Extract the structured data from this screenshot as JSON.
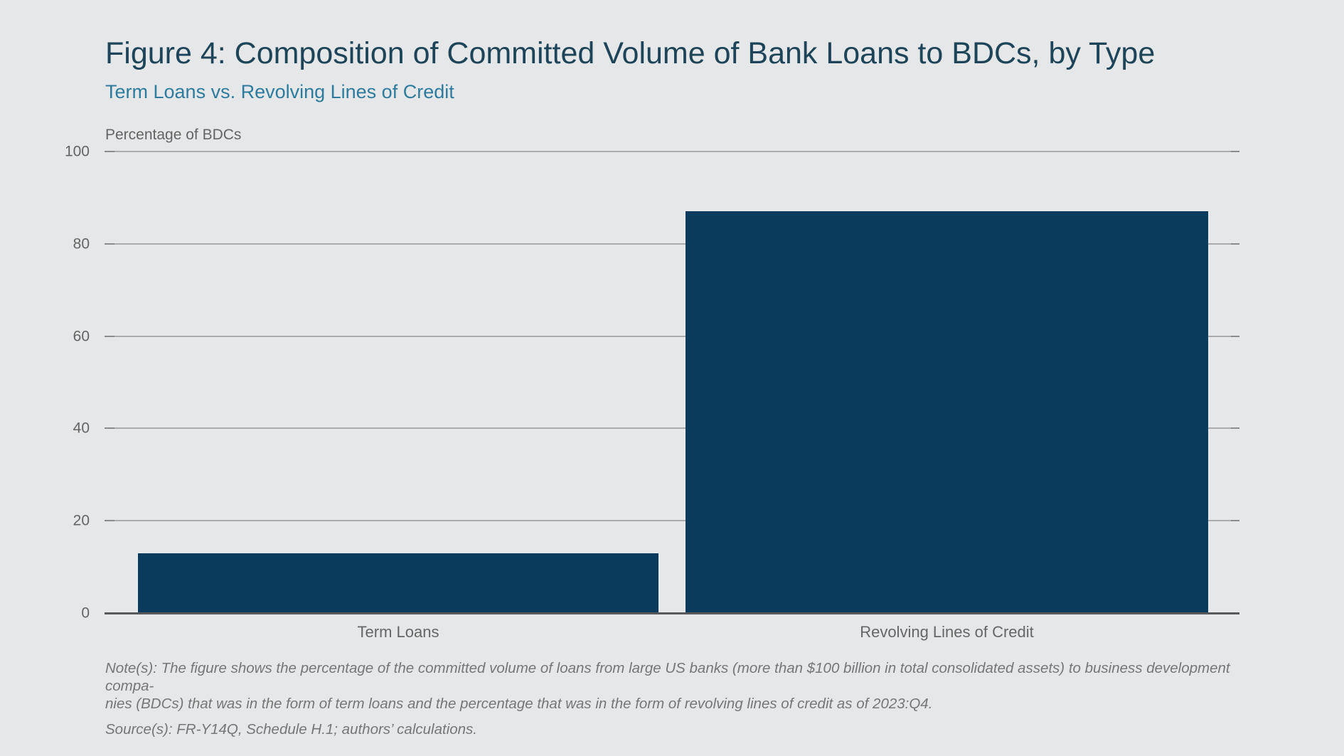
{
  "figure": {
    "title": "Figure 4: Composition of Committed Volume of Bank Loans to BDCs, by Type",
    "subtitle": "Term Loans vs. Revolving Lines of Credit",
    "note_line1": "Note(s): The figure shows the percentage of the committed volume of loans from large US banks (more than $100 billion in total consolidated assets) to business development compa-",
    "note_line2": "nies (BDCs) that was in the form of term loans and the percentage that was in the form of revolving lines of credit as of 2023:Q4.",
    "source": "Source(s): FR-Y14Q, Schedule H.1; authors’ calculations."
  },
  "chart_data": {
    "type": "bar",
    "categories": [
      "Term Loans",
      "Revolving Lines of Credit"
    ],
    "values": [
      13,
      87
    ],
    "title": "Figure 4: Composition of Committed Volume of Bank Loans to BDCs, by Type",
    "subtitle": "Term Loans vs. Revolving Lines of Credit",
    "xlabel": "",
    "ylabel": "Percentage of BDCs",
    "yticks": [
      0,
      20,
      40,
      60,
      80,
      100
    ],
    "ylim": [
      0,
      100
    ],
    "grid": true,
    "legend": false,
    "bar_color": "#0a3a5c",
    "background_color": "#e6e7e8",
    "title_color": "#1d4458",
    "subtitle_color": "#2d7c9d",
    "gridline_color": "#aaabac",
    "axis_line_color": "#58595b",
    "text_color": "#646464",
    "note_color": "#767677"
  }
}
